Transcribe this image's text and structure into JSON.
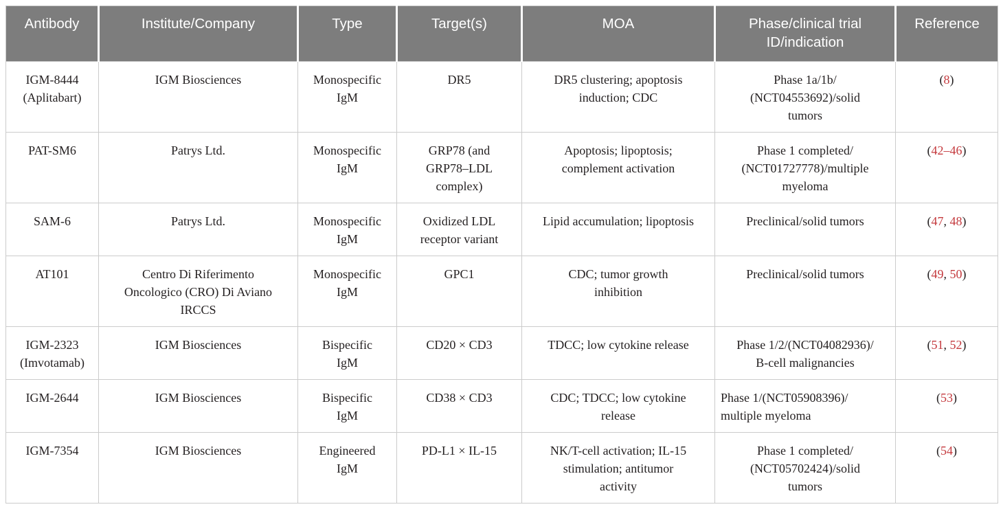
{
  "figure": {
    "kind": "journal-article-table",
    "colors": {
      "header_bg": "#7d7d7d",
      "header_text": "#ffffff",
      "body_text": "#231f20",
      "border": "#cbcbcb",
      "citation_red": "#c4393d"
    }
  },
  "table": {
    "columns": [
      {
        "key": "antibody",
        "label": "Antibody"
      },
      {
        "key": "institute",
        "label": "Institute/Company"
      },
      {
        "key": "type",
        "label": "Type"
      },
      {
        "key": "targets",
        "label": "Target(s)"
      },
      {
        "key": "moa",
        "label": "MOA"
      },
      {
        "key": "phase",
        "label": "Phase/clinical trial\nID/indication"
      },
      {
        "key": "reference",
        "label": "Reference"
      }
    ],
    "rows": [
      {
        "antibody": "IGM-8444\n(Aplitabart)",
        "institute": "IGM Biosciences",
        "type": "Monospecific\nIgM",
        "targets": "DR5",
        "moa": "DR5 clustering; apoptosis\ninduction; CDC",
        "phase": "Phase 1a/1b/\n(NCT04553692)/solid\ntumors",
        "reference": [
          {
            "t": "("
          },
          {
            "t": "8",
            "red": true
          },
          {
            "t": ")"
          }
        ]
      },
      {
        "antibody": "PAT-SM6",
        "institute": "Patrys Ltd.",
        "type": "Monospecific\nIgM",
        "targets": "GRP78 (and\nGRP78–LDL\ncomplex)",
        "moa": "Apoptosis; lipoptosis;\ncomplement activation",
        "phase": "Phase 1 completed/\n(NCT01727778)/multiple\nmyeloma",
        "reference": [
          {
            "t": "("
          },
          {
            "t": "42–46",
            "red": true
          },
          {
            "t": ")"
          }
        ]
      },
      {
        "antibody": "SAM-6",
        "institute": "Patrys Ltd.",
        "type": "Monospecific\nIgM",
        "targets": "Oxidized LDL\nreceptor variant",
        "moa": "Lipid accumulation; lipoptosis",
        "phase": "Preclinical/solid tumors",
        "reference": [
          {
            "t": "("
          },
          {
            "t": "47",
            "red": true
          },
          {
            "t": ", "
          },
          {
            "t": "48",
            "red": true
          },
          {
            "t": ")"
          }
        ]
      },
      {
        "antibody": "AT101",
        "institute": "Centro Di Riferimento\nOncologico (CRO) Di Aviano\nIRCCS",
        "type": "Monospecific\nIgM",
        "targets": "GPC1",
        "moa": "CDC; tumor growth\ninhibition",
        "phase": "Preclinical/solid tumors",
        "reference": [
          {
            "t": "("
          },
          {
            "t": "49",
            "red": true
          },
          {
            "t": ", "
          },
          {
            "t": "50",
            "red": true
          },
          {
            "t": ")"
          }
        ]
      },
      {
        "antibody": "IGM-2323\n(Imvotamab)",
        "institute": "IGM Biosciences",
        "type": "Bispecific\nIgM",
        "targets": "CD20 × CD3",
        "moa": "TDCC; low cytokine release",
        "phase": "Phase 1/2/(NCT04082936)/\nB-cell malignancies",
        "reference": [
          {
            "t": "("
          },
          {
            "t": "51",
            "red": true
          },
          {
            "t": ", "
          },
          {
            "t": "52",
            "red": true
          },
          {
            "t": ")"
          }
        ]
      },
      {
        "antibody": "IGM-2644",
        "institute": "IGM Biosciences",
        "type": "Bispecific\nIgM",
        "targets": "CD38 × CD3",
        "moa": "CDC; TDCC; low cytokine\nrelease",
        "phase": "Phase 1/(NCT05908396)/\nmultiple myeloma",
        "phase_align": "left",
        "reference": [
          {
            "t": "("
          },
          {
            "t": "53",
            "red": true
          },
          {
            "t": ")"
          }
        ]
      },
      {
        "antibody": "IGM-7354",
        "institute": "IGM Biosciences",
        "type": "Engineered\nIgM",
        "targets": "PD-L1 × IL-15",
        "moa": "NK/T-cell activation; IL-15\nstimulation; antitumor\nactivity",
        "phase": "Phase 1 completed/\n(NCT05702424)/solid\ntumors",
        "reference": [
          {
            "t": "("
          },
          {
            "t": "54",
            "red": true
          },
          {
            "t": ")"
          }
        ]
      }
    ]
  }
}
